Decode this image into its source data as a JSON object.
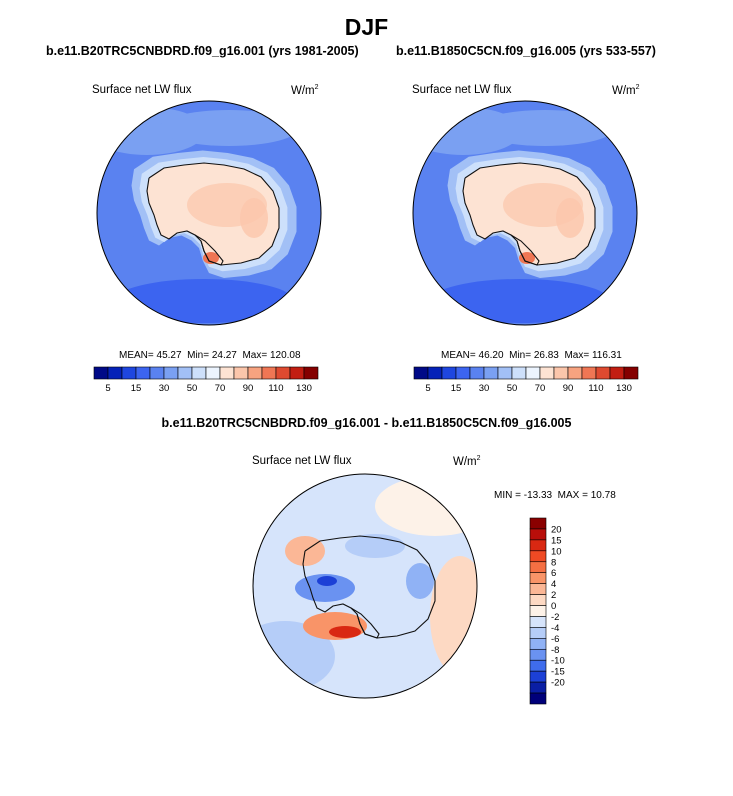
{
  "page": {
    "title": "DJF",
    "diff_title": "b.e11.B20TRC5CNBDRD.f09_g16.001 - b.e11.B1850C5CN.f09_g16.005"
  },
  "panels": [
    {
      "case_title": "b.e11.B20TRC5CNBDRD.f09_g16.001 (yrs 1981-2005)",
      "variable": "Surface net LW flux",
      "units": "W/m",
      "units_exp": "2",
      "stats": {
        "mean_label": "MEAN=",
        "mean": "45.27",
        "min_label": "Min=",
        "min": "24.27",
        "max_label": "Max=",
        "max": "120.08"
      }
    },
    {
      "case_title": "b.e11.B1850C5CN.f09_g16.005 (yrs 533-557)",
      "variable": "Surface net LW flux",
      "units": "W/m",
      "units_exp": "2",
      "stats": {
        "mean_label": "MEAN=",
        "mean": "46.20",
        "min_label": "Min=",
        "min": "26.83",
        "max_label": "Max=",
        "max": "116.31"
      }
    }
  ],
  "diff_panel": {
    "variable": "Surface net LW flux",
    "units": "W/m",
    "units_exp": "2",
    "stats": {
      "min_label": "MIN =",
      "min": "-13.33",
      "max_label": "MAX =",
      "max": "10.78"
    }
  },
  "chart_data": [
    {
      "type": "heatmap",
      "projection": "south-polar-stereographic",
      "title": "b.e11.B20TRC5CNBDRD.f09_g16.001 (yrs 1981-2005)",
      "variable": "Surface net LW flux",
      "units": "W/m^2",
      "mean": 45.27,
      "min": 24.27,
      "max": 120.08,
      "colorbar": {
        "orientation": "horizontal",
        "levels": [
          5,
          10,
          15,
          20,
          30,
          40,
          50,
          60,
          70,
          80,
          90,
          100,
          110,
          120,
          130
        ],
        "tick_labels": [
          "5",
          "15",
          "30",
          "50",
          "70",
          "90",
          "110",
          "130"
        ],
        "colors": [
          "#000a87",
          "#0522b8",
          "#1e46e0",
          "#3c64f0",
          "#5a82f0",
          "#7aa0f2",
          "#a2c0f6",
          "#cde0fb",
          "#ecf4fe",
          "#fde3d3",
          "#fbc6ab",
          "#f7a380",
          "#ef7654",
          "#de4a30",
          "#c21e12",
          "#840000"
        ]
      }
    },
    {
      "type": "heatmap",
      "projection": "south-polar-stereographic",
      "title": "b.e11.B1850C5CN.f09_g16.005 (yrs 533-557)",
      "variable": "Surface net LW flux",
      "units": "W/m^2",
      "mean": 46.2,
      "min": 26.83,
      "max": 116.31,
      "colorbar": {
        "orientation": "horizontal",
        "levels": [
          5,
          10,
          15,
          20,
          30,
          40,
          50,
          60,
          70,
          80,
          90,
          100,
          110,
          120,
          130
        ],
        "tick_labels": [
          "5",
          "15",
          "30",
          "50",
          "70",
          "90",
          "110",
          "130"
        ],
        "colors": [
          "#000a87",
          "#0522b8",
          "#1e46e0",
          "#3c64f0",
          "#5a82f0",
          "#7aa0f2",
          "#a2c0f6",
          "#cde0fb",
          "#ecf4fe",
          "#fde3d3",
          "#fbc6ab",
          "#f7a380",
          "#ef7654",
          "#de4a30",
          "#c21e12",
          "#840000"
        ]
      }
    },
    {
      "type": "heatmap",
      "projection": "south-polar-stereographic",
      "title": "b.e11.B20TRC5CNBDRD.f09_g16.001 - b.e11.B1850C5CN.f09_g16.005",
      "variable": "Surface net LW flux",
      "units": "W/m^2",
      "min": -13.33,
      "max": 10.78,
      "colorbar": {
        "orientation": "vertical",
        "levels": [
          20,
          15,
          10,
          8,
          6,
          4,
          2,
          0,
          -2,
          -4,
          -6,
          -8,
          -10,
          -15,
          -20
        ],
        "tick_labels": [
          "20",
          "15",
          "10",
          "8",
          "6",
          "4",
          "2",
          "0",
          "-2",
          "-4",
          "-6",
          "-8",
          "-10",
          "-15",
          "-20"
        ],
        "colors": [
          "#8a0000",
          "#b80e0a",
          "#d92812",
          "#ef4a24",
          "#f56f43",
          "#f99468",
          "#fbb796",
          "#fdd9c3",
          "#fdf2e8",
          "#d6e4fb",
          "#b5cdf8",
          "#90b2f5",
          "#6a92f1",
          "#3f6cec",
          "#1c40d6",
          "#0a1ea4",
          "#00007a"
        ]
      }
    }
  ]
}
